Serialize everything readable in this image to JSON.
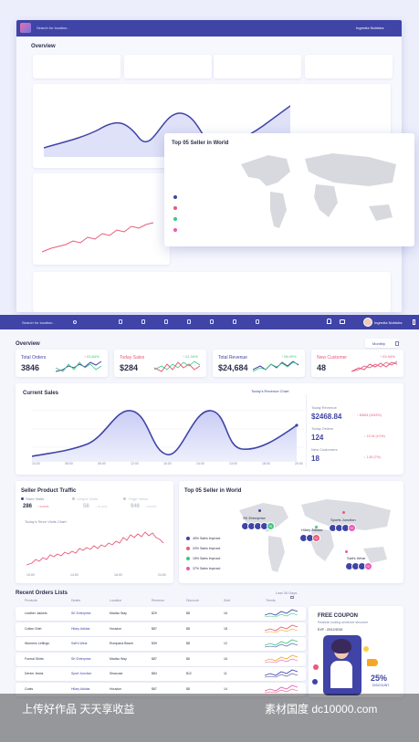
{
  "topbar": {
    "search_placeholder": "Search for location..",
    "user_name": "Ingredia Nutrisha"
  },
  "overview": {
    "title": "Overview",
    "period": "Monthly",
    "stats": [
      {
        "label": "Total Orders",
        "value": "3846",
        "pct": "↑ 03.84%",
        "color": "#3f44a6",
        "pct_color": "#3ec680"
      },
      {
        "label": "Today Sales",
        "value": "$284",
        "pct": "↑ 01.34%",
        "color": "#e85a7a",
        "pct_color": "#3ec680"
      },
      {
        "label": "Total Revenue",
        "value": "$24,684",
        "pct": "↑ 08.09%",
        "color": "#3f44a6",
        "pct_color": "#3ec680"
      },
      {
        "label": "New Customer",
        "value": "48",
        "pct": "↑ 03.94%",
        "color": "#e85a7a",
        "pct_color": "#e85a7a"
      }
    ]
  },
  "current_sales": {
    "title": "Current Sales",
    "chart_title": "Today's Revenue Chart",
    "x_labels": [
      "10:00",
      "08:00",
      "06:00",
      "12:00",
      "16:00",
      "14:00",
      "13:00",
      "18:00",
      "20:00"
    ],
    "today_revenue_label": "Today Revenue",
    "today_revenue_value": "$2468.84",
    "today_revenue_pct": "↑ $3634 (0043%)",
    "today_orders_label": "Today Orders",
    "today_orders_value": "124",
    "today_orders_pct": "↓ 10.04 (4.0%)",
    "new_customers_label": "New Customers",
    "new_customers_value": "18",
    "new_customers_pct": "↓ 1.82 (7%)"
  },
  "seller_traffic": {
    "title": "Seller Product Traffic",
    "store_visits_label": "Store Visits",
    "store_visits_value": "286",
    "store_visits_pct": "↓ 04.02%",
    "unique_visits_label": "Unique Visits",
    "unique_visits_value": "58",
    "unique_visits_pct": "↑ 01.02%",
    "page_views_label": "Page Views",
    "page_views_value": "946",
    "page_views_pct": "↑ 03.02%",
    "chart_title": "Today's Store Visits Chart",
    "x_labels": [
      "10:00",
      "14:00",
      "16:00",
      "24:00"
    ]
  },
  "top_sellers": {
    "title": "Top 05 Seller in World",
    "locations": [
      "SK Enterprise",
      "Hilary Adidas",
      "Sports Junction",
      "Salt's Wear"
    ],
    "badges": [
      "+5",
      "+2",
      "+2",
      "+2"
    ],
    "legend": [
      {
        "text": "45% Sales Improvd",
        "color": "#3f44a6"
      },
      {
        "text": "20% Sales Improvd",
        "color": "#e85a7a"
      },
      {
        "text": "15% Sales Improvd",
        "color": "#3ec680"
      },
      {
        "text": "37% Sales Improvd",
        "color": "#e85ab5"
      }
    ]
  },
  "recent_orders": {
    "title": "Recent Orders Lists",
    "period": "Last 30 Days",
    "columns": [
      "Products",
      "Dealer",
      "Location",
      "Revenue",
      "Discount",
      "Sold",
      "Trends"
    ],
    "rows": [
      [
        "Leather Jackets",
        "SK Enterprise",
        "Madisc Way",
        "$29",
        "$8",
        "16"
      ],
      [
        "Cotton Shirt",
        "Hilary Adidas",
        "Houston",
        "$87",
        "$8",
        "18"
      ],
      [
        "Womens Leftings",
        "Salt's Wear",
        "Rumpana Beach",
        "$39",
        "$8",
        "12"
      ],
      [
        "Formal Shirts",
        "SK Enterprise",
        "Madisc Way",
        "$87",
        "$6",
        "16"
      ],
      [
        "Denim Jeans",
        "Sport Junction",
        "Sinacuse",
        "$84",
        "$12",
        "11"
      ],
      [
        "Coats",
        "Hilary Adidas",
        "Houston",
        "$87",
        "$8",
        "14"
      ]
    ],
    "coupon_title": "FREE COUPON",
    "coupon_sub": "Realistic looking sentence structure",
    "coupon_expiry": "EXP : 20/12/2019",
    "coupon_discount": "25%",
    "coupon_discount_sub": "DISCOUNT"
  },
  "watermark": {
    "left": "上传好作品 天天享收益",
    "right": "素材国度 dc10000.com"
  }
}
